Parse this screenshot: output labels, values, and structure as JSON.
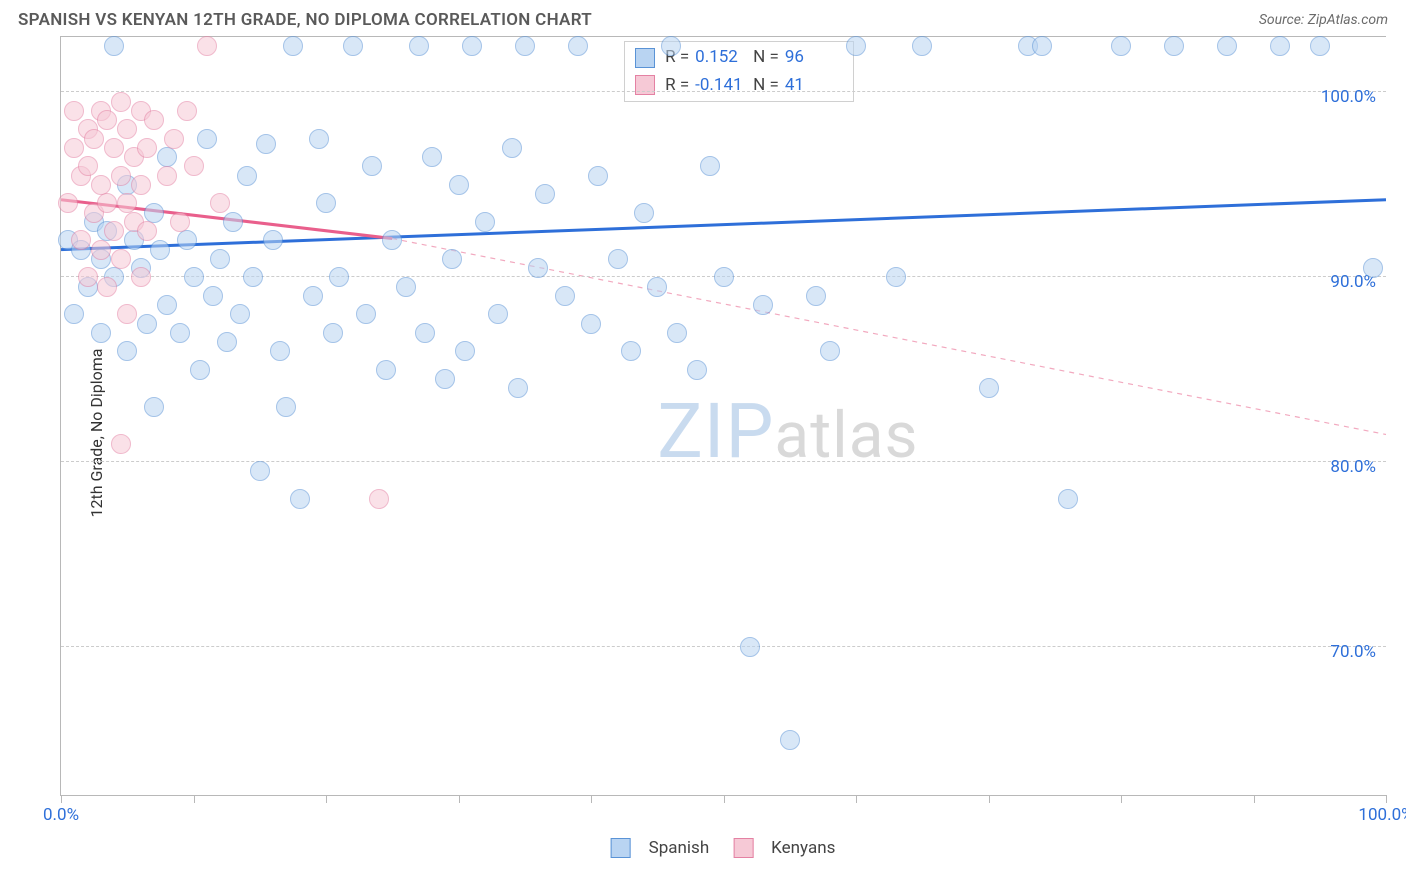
{
  "title": "SPANISH VS KENYAN 12TH GRADE, NO DIPLOMA CORRELATION CHART",
  "source": "Source: ZipAtlas.com",
  "y_axis_label": "12th Grade, No Diploma",
  "chart": {
    "type": "scatter",
    "xlim": [
      0,
      100
    ],
    "ylim": [
      62,
      103
    ],
    "y_ticks": [
      70,
      80,
      90,
      100
    ],
    "y_tick_labels": [
      "70.0%",
      "80.0%",
      "90.0%",
      "100.0%"
    ],
    "x_ticks": [
      0,
      10,
      20,
      30,
      40,
      50,
      60,
      70,
      80,
      90,
      100
    ],
    "x_tick_labels": {
      "0": "0.0%",
      "100": "100.0%"
    },
    "background_color": "#ffffff",
    "grid_color": "#cccccc",
    "axis_color": "#b8b8b8",
    "label_color_numeric": "#2e6fd9",
    "point_radius": 10,
    "point_opacity": 0.55,
    "series": [
      {
        "name": "Spanish",
        "fill": "#b9d4f2",
        "stroke": "#5a93d6",
        "trend": {
          "x1": 0,
          "y1": 91.5,
          "x2": 100,
          "y2": 94.2,
          "color": "#2e6fd9",
          "width": 3,
          "dash": "none"
        },
        "trend_extrap": null,
        "R": "0.152",
        "N": "96",
        "points": [
          [
            0.5,
            92
          ],
          [
            1,
            88
          ],
          [
            1.5,
            91.5
          ],
          [
            2,
            89.5
          ],
          [
            2.5,
            93
          ],
          [
            3,
            91
          ],
          [
            3,
            87
          ],
          [
            3.5,
            92.5
          ],
          [
            4,
            90
          ],
          [
            4,
            102.5
          ],
          [
            5,
            95
          ],
          [
            5,
            86
          ],
          [
            5.5,
            92
          ],
          [
            6,
            90.5
          ],
          [
            6.5,
            87.5
          ],
          [
            7,
            93.5
          ],
          [
            7,
            83
          ],
          [
            7.5,
            91.5
          ],
          [
            8,
            88.5
          ],
          [
            8,
            96.5
          ],
          [
            9,
            87
          ],
          [
            9.5,
            92
          ],
          [
            10,
            90
          ],
          [
            10.5,
            85
          ],
          [
            11,
            97.5
          ],
          [
            11.5,
            89
          ],
          [
            12,
            91
          ],
          [
            12.5,
            86.5
          ],
          [
            13,
            93
          ],
          [
            13.5,
            88
          ],
          [
            14,
            95.5
          ],
          [
            14.5,
            90
          ],
          [
            15,
            79.5
          ],
          [
            15.5,
            97.2
          ],
          [
            16,
            92
          ],
          [
            16.5,
            86
          ],
          [
            17,
            83
          ],
          [
            17.5,
            102.5
          ],
          [
            18,
            78
          ],
          [
            19,
            89
          ],
          [
            19.5,
            97.5
          ],
          [
            20,
            94
          ],
          [
            20.5,
            87
          ],
          [
            21,
            90
          ],
          [
            22,
            102.5
          ],
          [
            23,
            88
          ],
          [
            23.5,
            96
          ],
          [
            24.5,
            85
          ],
          [
            25,
            92
          ],
          [
            26,
            89.5
          ],
          [
            27,
            102.5
          ],
          [
            27.5,
            87
          ],
          [
            28,
            96.5
          ],
          [
            29,
            84.5
          ],
          [
            29.5,
            91
          ],
          [
            30,
            95
          ],
          [
            30.5,
            86
          ],
          [
            31,
            102.5
          ],
          [
            32,
            93
          ],
          [
            33,
            88
          ],
          [
            34,
            97
          ],
          [
            34.5,
            84
          ],
          [
            35,
            102.5
          ],
          [
            36,
            90.5
          ],
          [
            36.5,
            94.5
          ],
          [
            38,
            89
          ],
          [
            39,
            102.5
          ],
          [
            40,
            87.5
          ],
          [
            40.5,
            95.5
          ],
          [
            42,
            91
          ],
          [
            43,
            86
          ],
          [
            44,
            93.5
          ],
          [
            45,
            89.5
          ],
          [
            46,
            102.5
          ],
          [
            46.5,
            87
          ],
          [
            48,
            85
          ],
          [
            49,
            96
          ],
          [
            50,
            90
          ],
          [
            52,
            70
          ],
          [
            53,
            88.5
          ],
          [
            55,
            65
          ],
          [
            57,
            89
          ],
          [
            58,
            86
          ],
          [
            60,
            102.5
          ],
          [
            63,
            90
          ],
          [
            65,
            102.5
          ],
          [
            70,
            84
          ],
          [
            73,
            102.5
          ],
          [
            74,
            102.5
          ],
          [
            76,
            78
          ],
          [
            80,
            102.5
          ],
          [
            84,
            102.5
          ],
          [
            88,
            102.5
          ],
          [
            92,
            102.5
          ],
          [
            95,
            102.5
          ],
          [
            99,
            90.5
          ]
        ]
      },
      {
        "name": "Kenyans",
        "fill": "#f6c9d6",
        "stroke": "#e481a3",
        "trend": {
          "x1": 0,
          "y1": 94.2,
          "x2": 25,
          "y2": 92.1,
          "color": "#e95f8c",
          "width": 3,
          "dash": "none"
        },
        "trend_extrap": {
          "x1": 25,
          "y1": 92.1,
          "x2": 100,
          "y2": 81.5,
          "color": "#f2a9bf",
          "width": 1.2,
          "dash": "5,5"
        },
        "R": "-0.141",
        "N": "41",
        "points": [
          [
            0.5,
            94
          ],
          [
            1,
            97
          ],
          [
            1,
            99
          ],
          [
            1.5,
            95.5
          ],
          [
            1.5,
            92
          ],
          [
            2,
            98
          ],
          [
            2,
            96
          ],
          [
            2,
            90
          ],
          [
            2.5,
            97.5
          ],
          [
            2.5,
            93.5
          ],
          [
            3,
            99
          ],
          [
            3,
            95
          ],
          [
            3,
            91.5
          ],
          [
            3.5,
            98.5
          ],
          [
            3.5,
            94
          ],
          [
            3.5,
            89.5
          ],
          [
            4,
            97
          ],
          [
            4,
            92.5
          ],
          [
            4.5,
            99.5
          ],
          [
            4.5,
            95.5
          ],
          [
            4.5,
            91
          ],
          [
            4.5,
            81
          ],
          [
            5,
            98
          ],
          [
            5,
            94
          ],
          [
            5,
            88
          ],
          [
            5.5,
            96.5
          ],
          [
            5.5,
            93
          ],
          [
            6,
            99
          ],
          [
            6,
            95
          ],
          [
            6,
            90
          ],
          [
            6.5,
            97
          ],
          [
            6.5,
            92.5
          ],
          [
            7,
            98.5
          ],
          [
            8,
            95.5
          ],
          [
            8.5,
            97.5
          ],
          [
            9,
            93
          ],
          [
            9.5,
            99
          ],
          [
            10,
            96
          ],
          [
            11,
            102.5
          ],
          [
            12,
            94
          ],
          [
            24,
            78
          ]
        ]
      }
    ]
  },
  "stats_box": {
    "rows": [
      {
        "swatch_fill": "#b9d4f2",
        "swatch_stroke": "#5a93d6",
        "r_label": "R =",
        "r_val": "0.152",
        "n_label": "N =",
        "n_val": "96"
      },
      {
        "swatch_fill": "#f6c9d6",
        "swatch_stroke": "#e481a3",
        "r_label": "R =",
        "r_val": "-0.141",
        "n_label": "N =",
        "n_val": "41"
      }
    ]
  },
  "legend": [
    {
      "label": "Spanish",
      "fill": "#b9d4f2",
      "stroke": "#5a93d6"
    },
    {
      "label": "Kenyans",
      "fill": "#f6c9d6",
      "stroke": "#e481a3"
    }
  ],
  "watermark": {
    "text_a": "ZIP",
    "text_b": "atlas",
    "color_a": "#c9dbef",
    "color_b": "#d9d9d9"
  }
}
